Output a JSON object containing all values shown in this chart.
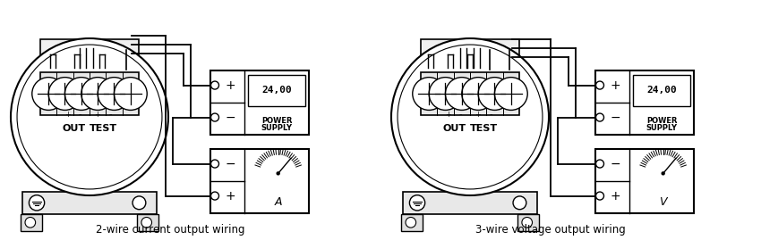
{
  "bg_color": "#ffffff",
  "lc": "#000000",
  "title_left": "2-wire current output wiring",
  "title_right": "3-wire voltage output wiring",
  "meter_label_left": "A",
  "meter_label_right": "V",
  "ps_text": "24,00",
  "ps_label1": "POWER",
  "ps_label2": "SUPPLY",
  "out_label": "OUT",
  "test_label": "TEST",
  "plus_sign": "+",
  "minus_sign": "−",
  "fig_w": 8.5,
  "fig_h": 2.69,
  "dpi": 100
}
